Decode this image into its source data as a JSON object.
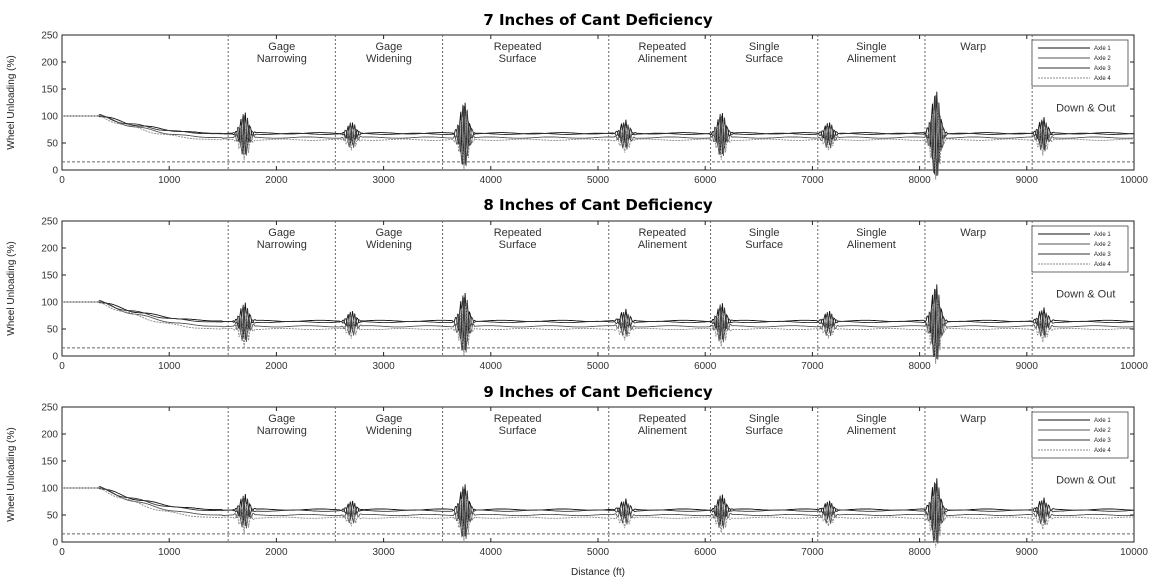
{
  "chart_data": [
    {
      "type": "line",
      "title": "7 Inches of Cant Deficiency",
      "ylabel": "Wheel Unloading (%)",
      "xlabel": "",
      "xlim": [
        0,
        10000
      ],
      "ylim": [
        0,
        250
      ],
      "x_ticks": [
        0,
        1000,
        2000,
        3000,
        4000,
        5000,
        6000,
        7000,
        8000,
        9000,
        10000
      ],
      "y_ticks": [
        0,
        50,
        100,
        150,
        200,
        250
      ],
      "threshold": 15,
      "section_boundaries": [
        1550,
        2550,
        3550,
        5100,
        6050,
        7050,
        8050,
        9050
      ],
      "sections": [
        {
          "x": 2050,
          "lines": [
            "Gage",
            "Narrowing"
          ]
        },
        {
          "x": 3050,
          "lines": [
            "Gage",
            "Widening"
          ]
        },
        {
          "x": 4250,
          "lines": [
            "Repeated",
            "Surface"
          ]
        },
        {
          "x": 5600,
          "lines": [
            "Repeated",
            "Alinement"
          ]
        },
        {
          "x": 6550,
          "lines": [
            "Single",
            "Surface"
          ]
        },
        {
          "x": 7550,
          "lines": [
            "Single",
            "Alinement"
          ]
        },
        {
          "x": 8500,
          "lines": [
            "Warp"
          ]
        },
        {
          "x": 9550,
          "lines": [
            "Down & Out"
          ]
        }
      ],
      "legend": [
        "Axle 1",
        "Axle 2",
        "Axle 3",
        "Axle 4"
      ],
      "legend_position": "top-right",
      "series": [
        {
          "name": "Axle 1",
          "start": 100,
          "settle": 68
        },
        {
          "name": "Axle 2",
          "start": 100,
          "settle": 60
        },
        {
          "name": "Axle 3",
          "start": 100,
          "settle": 67
        },
        {
          "name": "Axle 4",
          "start": 100,
          "settle": 56
        }
      ],
      "disturbances": [
        {
          "x": 1700,
          "amp": 40
        },
        {
          "x": 2700,
          "amp": 22
        },
        {
          "x": 3750,
          "amp": 60
        },
        {
          "x": 5250,
          "amp": 25
        },
        {
          "x": 6150,
          "amp": 40
        },
        {
          "x": 7150,
          "amp": 22
        },
        {
          "x": 8150,
          "amp": 80
        },
        {
          "x": 9150,
          "amp": 30
        }
      ]
    },
    {
      "type": "line",
      "title": "8 Inches of Cant Deficiency",
      "ylabel": "Wheel Unloading (%)",
      "xlabel": "",
      "xlim": [
        0,
        10000
      ],
      "ylim": [
        0,
        250
      ],
      "x_ticks": [
        0,
        1000,
        2000,
        3000,
        4000,
        5000,
        6000,
        7000,
        8000,
        9000,
        10000
      ],
      "y_ticks": [
        0,
        50,
        100,
        150,
        200,
        250
      ],
      "threshold": 15,
      "section_boundaries": [
        1550,
        2550,
        3550,
        5100,
        6050,
        7050,
        8050,
        9050
      ],
      "sections": [
        {
          "x": 2050,
          "lines": [
            "Gage",
            "Narrowing"
          ]
        },
        {
          "x": 3050,
          "lines": [
            "Gage",
            "Widening"
          ]
        },
        {
          "x": 4250,
          "lines": [
            "Repeated",
            "Surface"
          ]
        },
        {
          "x": 5600,
          "lines": [
            "Repeated",
            "Alinement"
          ]
        },
        {
          "x": 6550,
          "lines": [
            "Single",
            "Surface"
          ]
        },
        {
          "x": 7550,
          "lines": [
            "Single",
            "Alinement"
          ]
        },
        {
          "x": 8500,
          "lines": [
            "Warp"
          ]
        },
        {
          "x": 9550,
          "lines": [
            "Down & Out"
          ]
        }
      ],
      "legend": [
        "Axle 1",
        "Axle 2",
        "Axle 3",
        "Axle 4"
      ],
      "legend_position": "top-right",
      "series": [
        {
          "name": "Axle 1",
          "start": 100,
          "settle": 65
        },
        {
          "name": "Axle 2",
          "start": 100,
          "settle": 55
        },
        {
          "name": "Axle 3",
          "start": 100,
          "settle": 63
        },
        {
          "name": "Axle 4",
          "start": 100,
          "settle": 50
        }
      ],
      "disturbances": [
        {
          "x": 1700,
          "amp": 35
        },
        {
          "x": 2700,
          "amp": 20
        },
        {
          "x": 3750,
          "amp": 55
        },
        {
          "x": 5250,
          "amp": 22
        },
        {
          "x": 6150,
          "amp": 35
        },
        {
          "x": 7150,
          "amp": 20
        },
        {
          "x": 8150,
          "amp": 70
        },
        {
          "x": 9150,
          "amp": 25
        }
      ]
    },
    {
      "type": "line",
      "title": "9 Inches of Cant Deficiency",
      "ylabel": "Wheel Unloading (%)",
      "xlabel": "Distance (ft)",
      "xlim": [
        0,
        10000
      ],
      "ylim": [
        0,
        250
      ],
      "x_ticks": [
        0,
        1000,
        2000,
        3000,
        4000,
        5000,
        6000,
        7000,
        8000,
        9000,
        10000
      ],
      "y_ticks": [
        0,
        50,
        100,
        150,
        200,
        250
      ],
      "threshold": 15,
      "section_boundaries": [
        1550,
        2550,
        3550,
        5100,
        6050,
        7050,
        8050,
        9050
      ],
      "sections": [
        {
          "x": 2050,
          "lines": [
            "Gage",
            "Narrowing"
          ]
        },
        {
          "x": 3050,
          "lines": [
            "Gage",
            "Widening"
          ]
        },
        {
          "x": 4250,
          "lines": [
            "Repeated",
            "Surface"
          ]
        },
        {
          "x": 5600,
          "lines": [
            "Repeated",
            "Alinement"
          ]
        },
        {
          "x": 6550,
          "lines": [
            "Single",
            "Surface"
          ]
        },
        {
          "x": 7550,
          "lines": [
            "Single",
            "Alinement"
          ]
        },
        {
          "x": 8500,
          "lines": [
            "Warp"
          ]
        },
        {
          "x": 9550,
          "lines": [
            "Down & Out"
          ]
        }
      ],
      "legend": [
        "Axle 1",
        "Axle 2",
        "Axle 3",
        "Axle 4"
      ],
      "legend_position": "top-right",
      "series": [
        {
          "name": "Axle 1",
          "start": 100,
          "settle": 60
        },
        {
          "name": "Axle 2",
          "start": 100,
          "settle": 50
        },
        {
          "name": "Axle 3",
          "start": 100,
          "settle": 58
        },
        {
          "name": "Axle 4",
          "start": 100,
          "settle": 45
        }
      ],
      "disturbances": [
        {
          "x": 1700,
          "amp": 30
        },
        {
          "x": 2700,
          "amp": 18
        },
        {
          "x": 3750,
          "amp": 50
        },
        {
          "x": 5250,
          "amp": 20
        },
        {
          "x": 6150,
          "amp": 30
        },
        {
          "x": 7150,
          "amp": 18
        },
        {
          "x": 8150,
          "amp": 60
        },
        {
          "x": 9150,
          "amp": 22
        }
      ]
    }
  ],
  "colors": {
    "axle1": "#111111",
    "axle2": "#555555",
    "axle3": "#333333",
    "axle4": "#888888",
    "grid": "#666666"
  }
}
